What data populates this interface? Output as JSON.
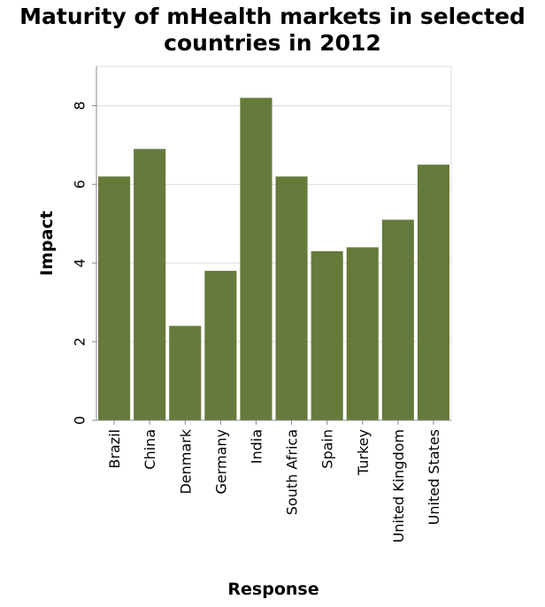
{
  "chart_data": {
    "type": "bar",
    "title_lines": [
      "Maturity of mHealth markets in selected",
      "countries in 2012"
    ],
    "xlabel": "Response",
    "ylabel": "Impact",
    "categories": [
      "Brazil",
      "China",
      "Denmark",
      "Germany",
      "India",
      "South Africa",
      "Spain",
      "Turkey",
      "United Kingdom",
      "United States"
    ],
    "values": [
      6.2,
      6.9,
      2.4,
      3.8,
      8.2,
      6.2,
      4.3,
      4.4,
      5.1,
      6.5
    ],
    "ylim": [
      0,
      9
    ],
    "yticks": [
      0,
      2,
      4,
      6,
      8
    ],
    "grid": true,
    "bar_color": "#667a3b",
    "grid_color": "#dddddd",
    "axis_color": "#888888"
  }
}
